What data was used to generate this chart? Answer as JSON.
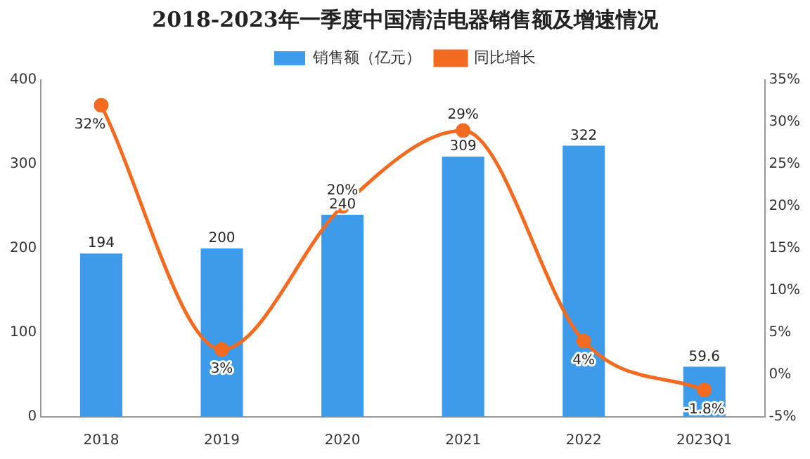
{
  "chart_data": {
    "type": "bar",
    "title": "2018-2023年一季度中国清洁电器销售额及增速情况",
    "categories": [
      "2018",
      "2019",
      "2020",
      "2021",
      "2022",
      "2023Q1"
    ],
    "series": [
      {
        "name": "销售额（亿元）",
        "color": "#3d9be9",
        "values": [
          194,
          200,
          240,
          309,
          322,
          59.6
        ],
        "value_labels": [
          "194",
          "200",
          "240",
          "309",
          "322",
          "59.6"
        ]
      },
      {
        "name": "同比增长",
        "type": "line",
        "axis": "y2",
        "color": "#f26b21",
        "values": [
          32,
          3,
          20,
          29,
          4,
          -1.8
        ],
        "value_labels": [
          "32%",
          "3%",
          "20%",
          "29%",
          "4%",
          "-1.8%"
        ]
      }
    ],
    "ylim": [
      0,
      400
    ],
    "yticks": [
      0,
      100,
      200,
      300,
      400
    ],
    "y2lim": [
      -5,
      35
    ],
    "y2ticks": [
      {
        "value": -5,
        "label": "-5%"
      },
      {
        "value": 0,
        "label": "0%"
      },
      {
        "value": 5,
        "label": "5%"
      },
      {
        "value": 10,
        "label": "10%"
      },
      {
        "value": 15,
        "label": "15%"
      },
      {
        "value": 20,
        "label": "20%"
      },
      {
        "value": 25,
        "label": "25%"
      },
      {
        "value": 30,
        "label": "30%"
      },
      {
        "value": 35,
        "label": "35%"
      }
    ],
    "legend": "top",
    "grid": false,
    "marker": "circle"
  }
}
